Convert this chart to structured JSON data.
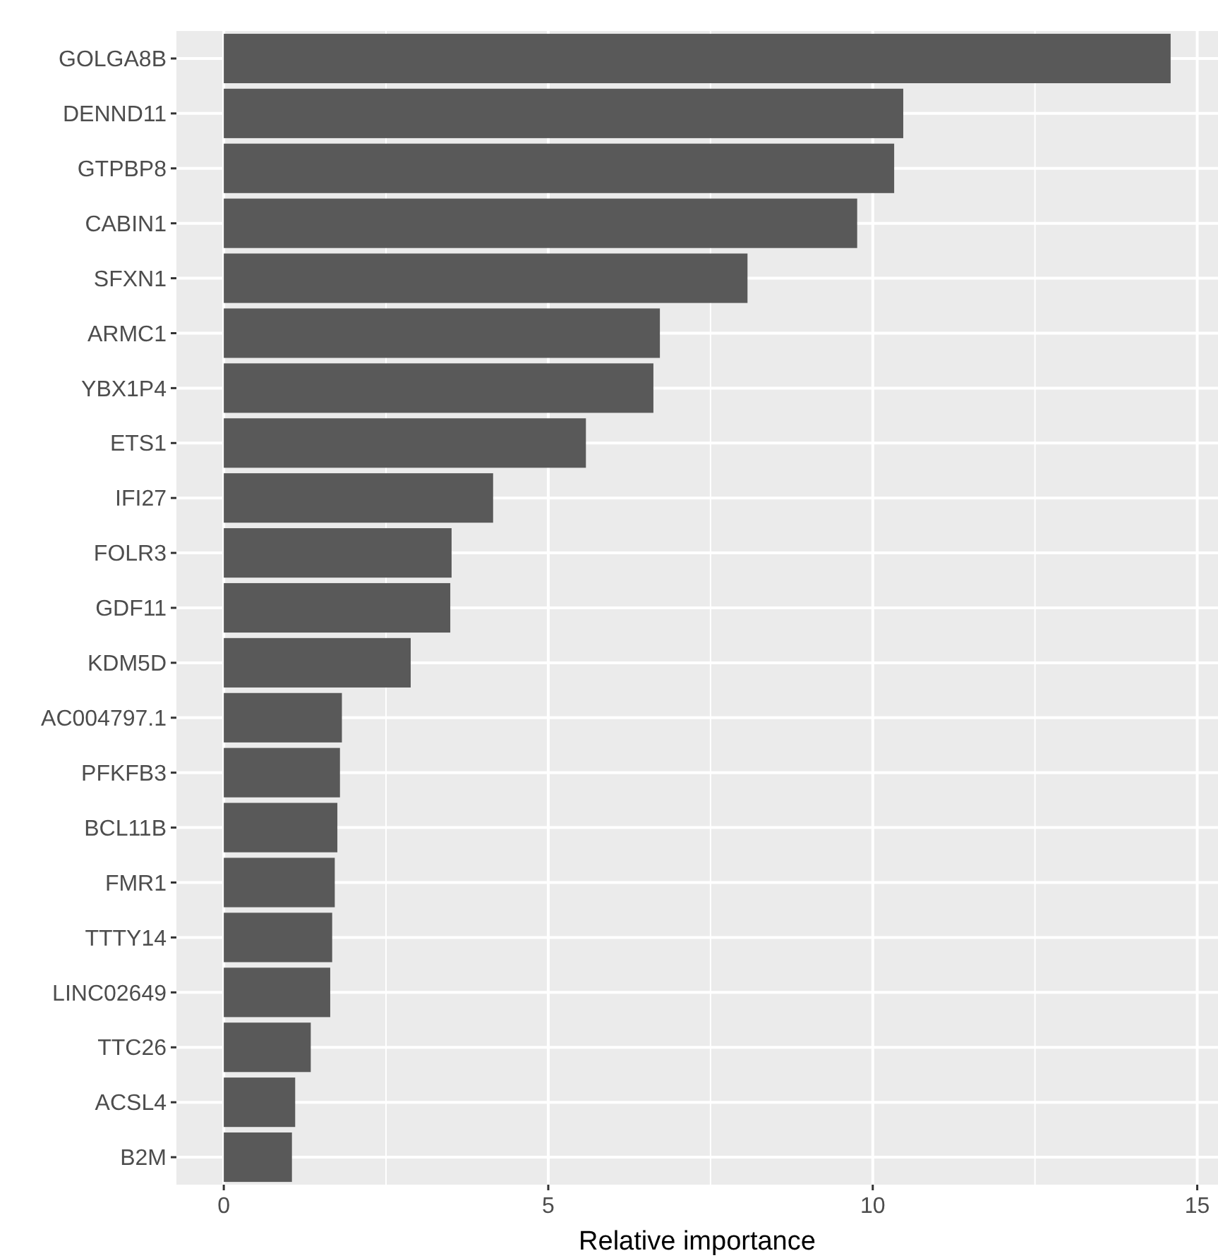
{
  "chart_data": {
    "type": "bar",
    "orientation": "horizontal",
    "xlabel": "Relative importance",
    "categories": [
      "GOLGA8B",
      "DENND11",
      "GTPBP8",
      "CABIN1",
      "SFXN1",
      "ARMC1",
      "YBX1P4",
      "ETS1",
      "IFI27",
      "FOLR3",
      "GDF11",
      "KDM5D",
      "AC004797.1",
      "PFKFB3",
      "BCL11B",
      "FMR1",
      "TTTY14",
      "LINC02649",
      "TTC26",
      "ACSL4",
      "B2M"
    ],
    "values": [
      14.59,
      10.47,
      10.33,
      9.76,
      8.07,
      6.72,
      6.62,
      5.58,
      4.15,
      3.51,
      3.49,
      2.88,
      1.82,
      1.79,
      1.75,
      1.71,
      1.67,
      1.64,
      1.34,
      1.1,
      1.05
    ],
    "color": "#595959",
    "xlim": [
      -0.73,
      15.32
    ],
    "xticks": [
      0,
      5,
      10,
      15
    ],
    "grid": true
  }
}
